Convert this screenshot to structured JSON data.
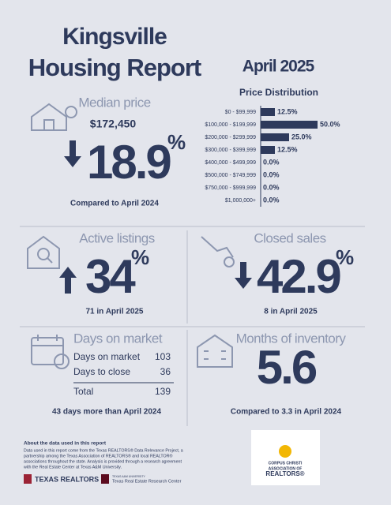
{
  "header": {
    "city": "Kingsville",
    "title": "Housing Report",
    "period": "April 2025"
  },
  "median_price": {
    "label": "Median price",
    "value": "$172,450",
    "change": "18.9",
    "unit": "%",
    "note": "Compared to April 2024"
  },
  "price_distribution": {
    "title": "Price Distribution",
    "categories": [
      "$0 - $99,999",
      "$100,000 - $199,999",
      "$200,000 - $299,999",
      "$300,000 - $399,999",
      "$400,000 - $499,999",
      "$500,000 - $749,999",
      "$750,000 - $999,999",
      "$1,000,000+"
    ],
    "values": [
      12.5,
      50.0,
      25.0,
      12.5,
      0.0,
      0.0,
      0.0,
      0.0
    ],
    "value_labels": [
      "12.5%",
      "50.0%",
      "25.0%",
      "12.5%",
      "0.0%",
      "0.0%",
      "0.0%",
      "0.0%"
    ],
    "color": "#2e3a5c",
    "xlim": [
      0,
      50
    ]
  },
  "active_listings": {
    "label": "Active listings",
    "change": "34",
    "unit": "%",
    "note": "71 in April 2025"
  },
  "closed_sales": {
    "label": "Closed sales",
    "change": "42.9",
    "unit": "%",
    "note": "8 in April 2025"
  },
  "days_on_market": {
    "label": "Days on market",
    "rows": [
      [
        "Days on market",
        "103"
      ],
      [
        "Days to close",
        "36"
      ],
      [
        "Total",
        "139"
      ]
    ],
    "note": "43 days more than April 2024"
  },
  "months_inventory": {
    "label": "Months of inventory",
    "value": "5.6",
    "note": "Compared to 3.3 in April 2024"
  },
  "footer": {
    "about_title": "About the data used in this report",
    "about_lines": [
      "Data used in this report come from the Texas REALTORS® Data Relevance Project, a",
      "partnership among the Texas Association of REALTORS® and local REALTOR®",
      "associations throughout the state. Analysis is provided through a research agreement",
      "with the Real Estate Center at Texas A&M University."
    ],
    "logo_tr": "TEXAS REALTORS",
    "logo_tamu": "TEXAS A&M UNIVERSITY",
    "logo_rec": "Texas Real Estate Research Center",
    "logo_cc": [
      "CORPUS CHRISTI",
      "ASSOCIATION OF",
      "REALTORS®"
    ]
  }
}
